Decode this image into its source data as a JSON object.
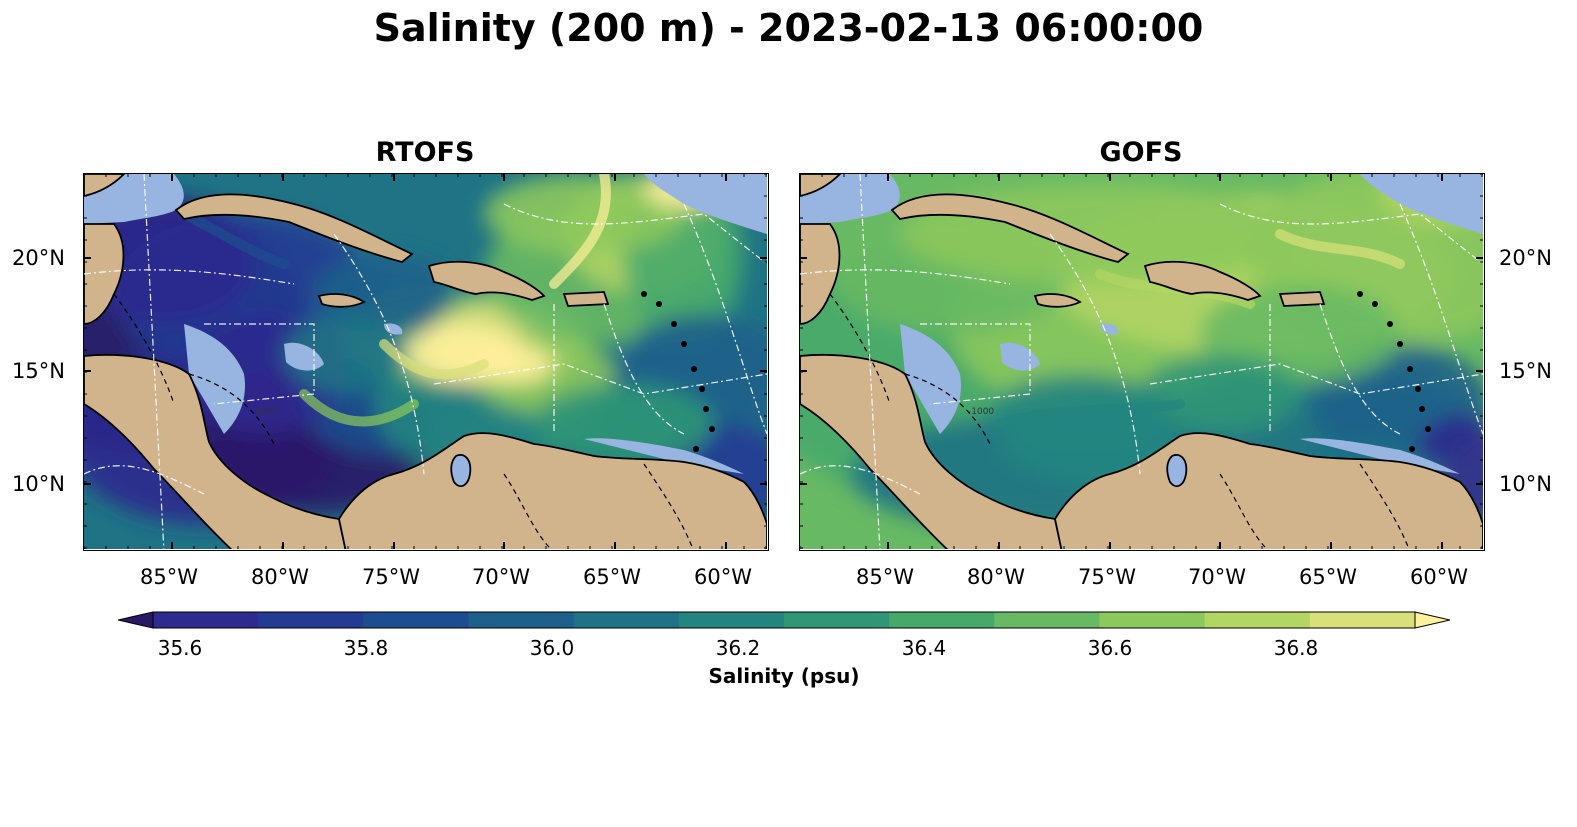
{
  "title": "Salinity (200 m) - 2023-02-13 06:00:00",
  "panels": [
    {
      "name": "RTOFS",
      "palette": "rtofs"
    },
    {
      "name": "GOFS",
      "palette": "gofs"
    }
  ],
  "map": {
    "lon_range": [
      -89,
      -58
    ],
    "lat_range": [
      7,
      24
    ],
    "lon_ticks": [
      "85°W",
      "80°W",
      "75°W",
      "70°W",
      "65°W",
      "60°W"
    ],
    "lat_ticks": [
      "20°N",
      "15°N",
      "10°N"
    ],
    "land_color": "#d2b48c",
    "shelf_color": "#98b4e0",
    "contour_label": "-1000"
  },
  "colorbar": {
    "label": "Salinity (psu)",
    "min": 35.5,
    "max": 37.0,
    "step": 0.1,
    "extend": "both",
    "tick_labels": [
      "35.6",
      "35.8",
      "36.0",
      "36.2",
      "36.4",
      "36.6",
      "36.8"
    ],
    "colors": [
      "#2a1866",
      "#2e2a8e",
      "#243b94",
      "#1c4e8f",
      "#1c608b",
      "#1f7385",
      "#24857f",
      "#2f9676",
      "#47a86c",
      "#68b963",
      "#8cc85c",
      "#b3d564",
      "#d8e07a",
      "#fff09b"
    ]
  }
}
